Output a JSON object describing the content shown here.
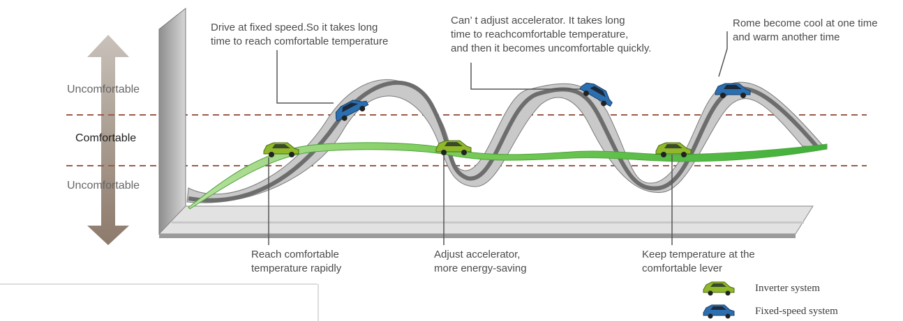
{
  "zones": {
    "top": "Uncomfortable",
    "middle": "Comfortable",
    "bottom": "Uncomfortable"
  },
  "callouts": {
    "fixed_speed": [
      "Drive at fixed speed.So it takes long",
      "time to reach comfortable temperature"
    ],
    "cant_adjust": [
      "Can’ t adjust accelerator. It takes long",
      "time to reachcomfortable temperature,",
      "and then it becomes uncomfortable quickly."
    ],
    "rome": [
      "Rome become cool at one time",
      "and warm another time"
    ],
    "reach": [
      "Reach comfortable",
      "temperature rapidly"
    ],
    "adjust": [
      "Adjust accelerator,",
      "more energy-saving"
    ],
    "keep": [
      "Keep temperature at the",
      "comfortable lever"
    ]
  },
  "legend": [
    {
      "label": "Inverter system",
      "icon": "green-car-icon",
      "color": "#8fb82a"
    },
    {
      "label": "Fixed-speed system",
      "icon": "blue-car-icon",
      "color": "#2c6fb0"
    }
  ],
  "colors": {
    "inverter": "#6cc24a",
    "fixed": "#8c8c8c",
    "dash": "#9a5a4a",
    "arrow": "#b8a89a"
  }
}
